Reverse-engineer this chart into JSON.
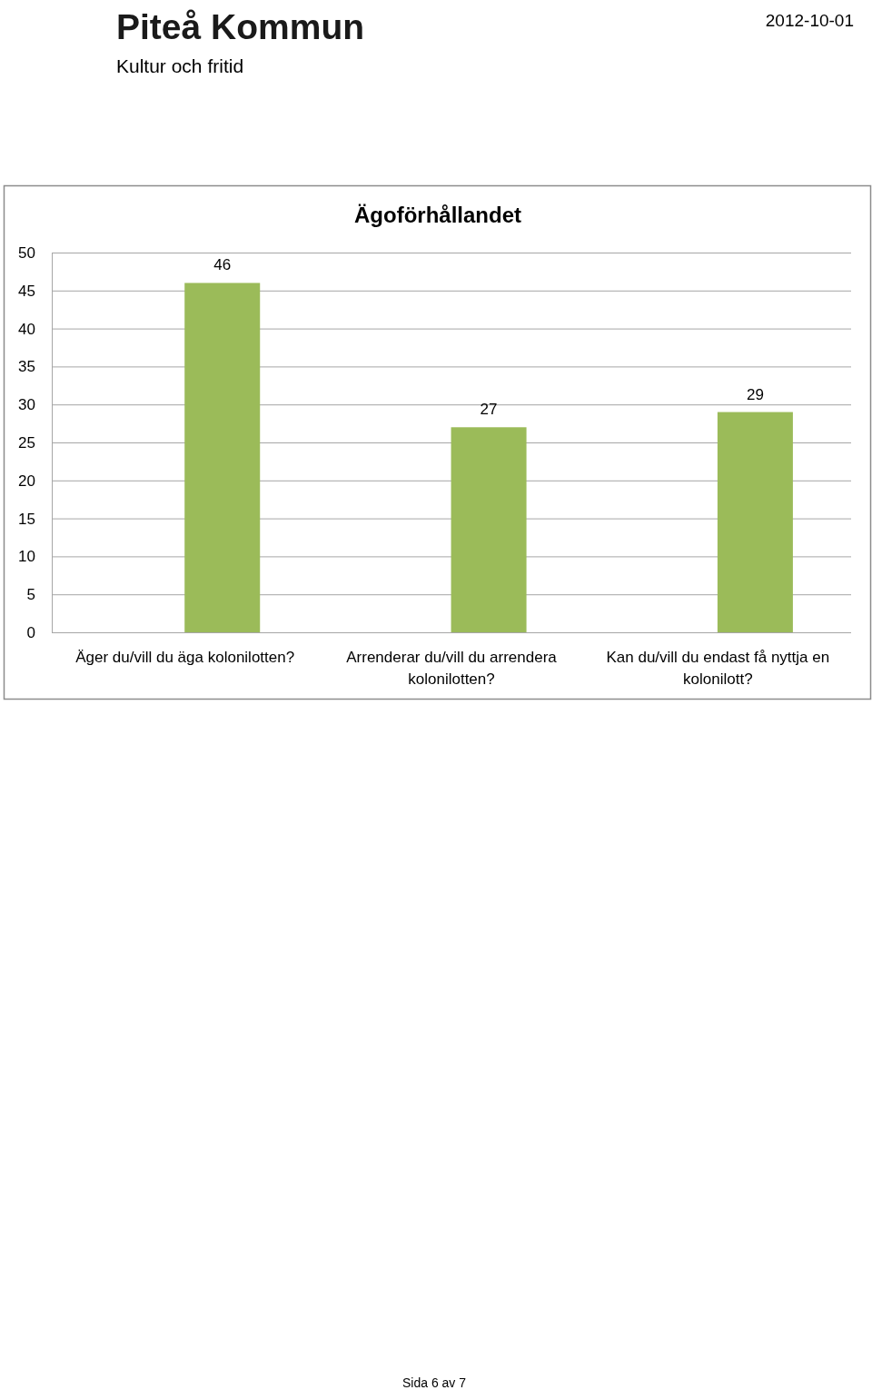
{
  "chart_data": {
    "type": "bar",
    "title": "Ägoförhållandet",
    "categories": [
      "Äger du/vill du äga kolonilotten?",
      "Arrenderar du/vill du arrendera kolonilotten?",
      "Kan du/vill du endast få nyttja en kolonilott?"
    ],
    "values": [
      46,
      27,
      29
    ],
    "color": "#9bbb59",
    "ylim": [
      0,
      50
    ],
    "yticks": [
      0,
      5,
      10,
      15,
      20,
      25,
      30,
      35,
      40,
      45,
      50
    ],
    "grid": "y",
    "data_labels": true,
    "annotations": [
      "Piteå Kommun",
      "Kultur och fritid",
      "2012-10-01",
      "Sida 6 av 7"
    ]
  }
}
